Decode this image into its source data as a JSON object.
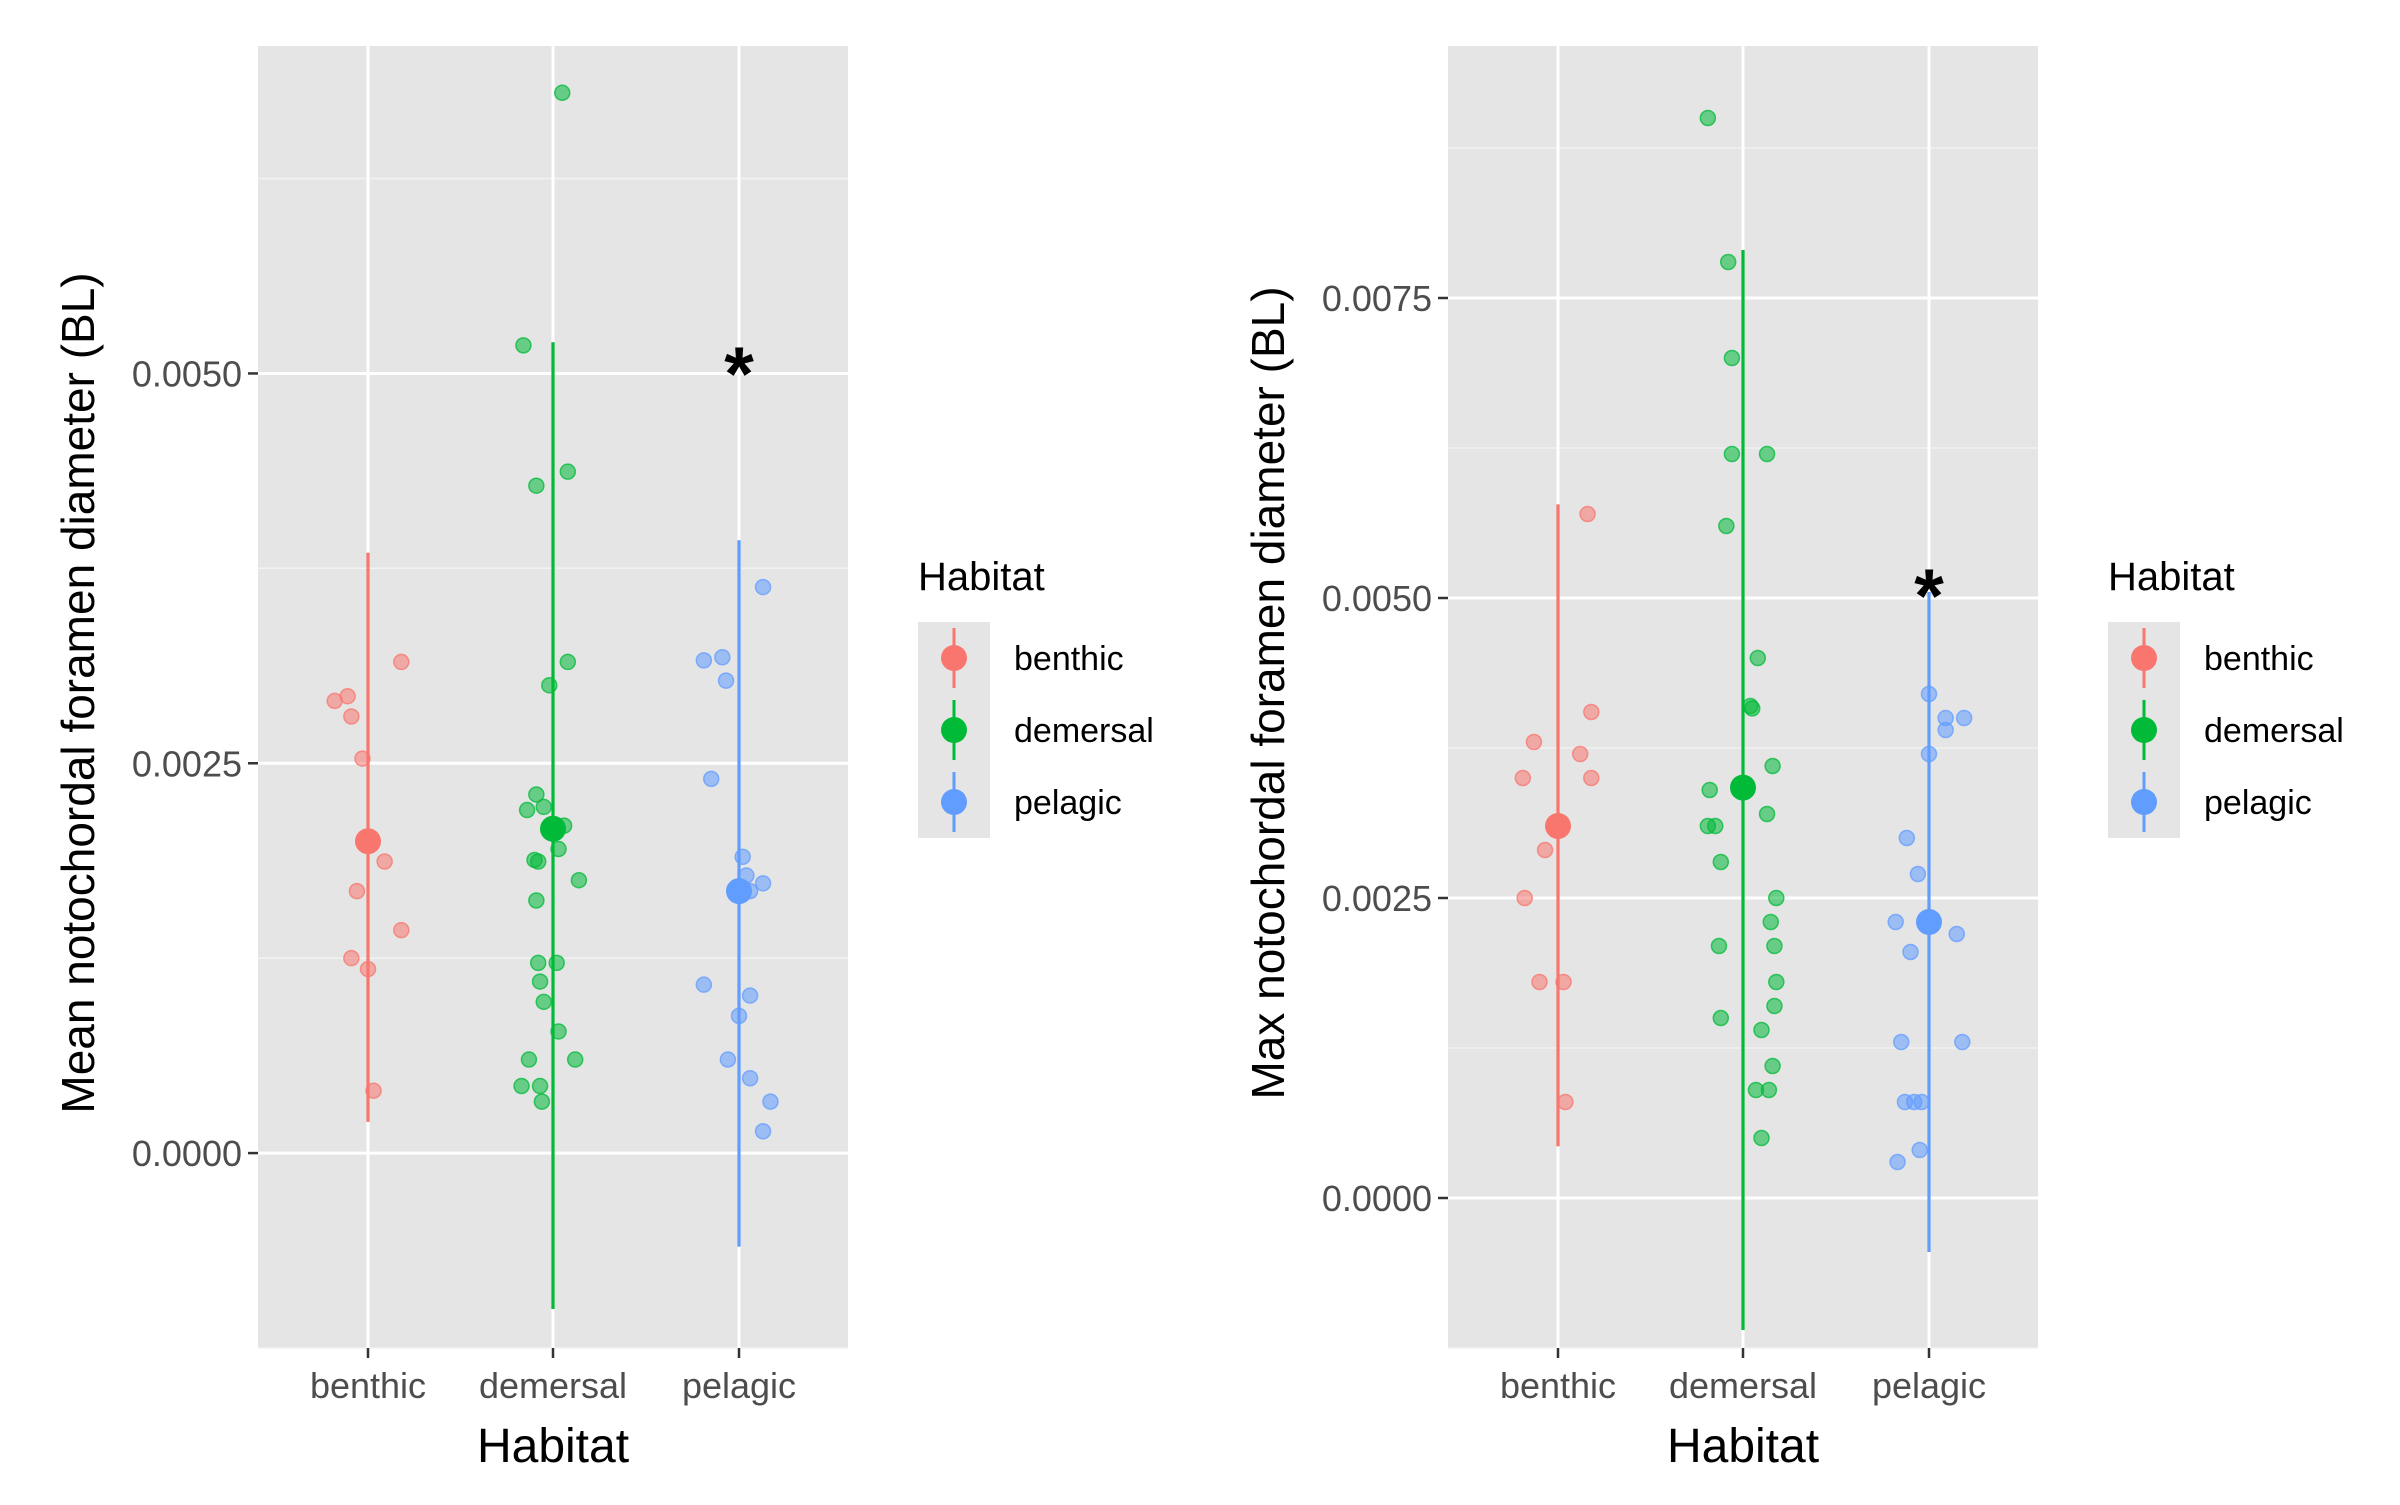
{
  "colors": {
    "panel_bg": "#E5E5E5",
    "grid_major": "#FFFFFF",
    "grid_minor": "#F2F2F2",
    "benthic": "#F8766D",
    "demersal": "#00BA38",
    "pelagic": "#619CFF",
    "text_dark": "#000000",
    "tick_text": "#4D4D4D"
  },
  "chart_data": [
    {
      "type": "scatter",
      "title": "",
      "xlabel": "Habitat",
      "ylabel": "Mean notochordal foramen diameter (BL)",
      "categories": [
        "benthic",
        "demersal",
        "pelagic"
      ],
      "ylim": [
        -0.00125,
        0.0071
      ],
      "yticks": [
        "0.0000",
        "0.0025",
        "0.0050"
      ],
      "ytick_values": [
        0.0,
        0.0025,
        0.005
      ],
      "grid": true,
      "legend": {
        "title": "Habitat",
        "position": "right",
        "entries": [
          "benthic",
          "demersal",
          "pelagic"
        ]
      },
      "annotations": [
        {
          "text": "*",
          "category": "pelagic",
          "y": 0.0051
        }
      ],
      "series": [
        {
          "name": "benthic",
          "mean": 0.002,
          "interval": [
            0.0002,
            0.00385
          ],
          "points": [
            {
              "dx": -0.18,
              "y": 0.0029
            },
            {
              "dx": -0.11,
              "y": 0.00293
            },
            {
              "dx": -0.09,
              "y": 0.0028
            },
            {
              "dx": 0.18,
              "y": 0.00315
            },
            {
              "dx": -0.03,
              "y": 0.00253
            },
            {
              "dx": 0.09,
              "y": 0.00187
            },
            {
              "dx": -0.06,
              "y": 0.00168
            },
            {
              "dx": 0.18,
              "y": 0.00143
            },
            {
              "dx": -0.09,
              "y": 0.00125
            },
            {
              "dx": 0.0,
              "y": 0.00118
            },
            {
              "dx": 0.03,
              "y": 0.0004
            }
          ]
        },
        {
          "name": "demersal",
          "mean": 0.00208,
          "interval": [
            -0.001,
            0.0052
          ],
          "points": [
            {
              "dx": 0.05,
              "y": 0.0068
            },
            {
              "dx": -0.16,
              "y": 0.00518
            },
            {
              "dx": 0.08,
              "y": 0.00437
            },
            {
              "dx": -0.09,
              "y": 0.00428
            },
            {
              "dx": 0.08,
              "y": 0.00315
            },
            {
              "dx": -0.02,
              "y": 0.003
            },
            {
              "dx": -0.09,
              "y": 0.0023
            },
            {
              "dx": -0.14,
              "y": 0.0022
            },
            {
              "dx": -0.05,
              "y": 0.00222
            },
            {
              "dx": 0.06,
              "y": 0.0021
            },
            {
              "dx": 0.03,
              "y": 0.00195
            },
            {
              "dx": -0.1,
              "y": 0.00188
            },
            {
              "dx": -0.08,
              "y": 0.00187
            },
            {
              "dx": 0.14,
              "y": 0.00175
            },
            {
              "dx": -0.09,
              "y": 0.00162
            },
            {
              "dx": -0.08,
              "y": 0.00122
            },
            {
              "dx": 0.02,
              "y": 0.00122
            },
            {
              "dx": -0.07,
              "y": 0.0011
            },
            {
              "dx": -0.05,
              "y": 0.00097
            },
            {
              "dx": 0.03,
              "y": 0.00078
            },
            {
              "dx": -0.13,
              "y": 0.0006
            },
            {
              "dx": 0.12,
              "y": 0.0006
            },
            {
              "dx": -0.17,
              "y": 0.00043
            },
            {
              "dx": -0.07,
              "y": 0.00043
            },
            {
              "dx": -0.06,
              "y": 0.00033
            }
          ]
        },
        {
          "name": "pelagic",
          "mean": 0.00168,
          "interval": [
            -0.0006,
            0.00393
          ],
          "points": [
            {
              "dx": 0.13,
              "y": 0.00363
            },
            {
              "dx": -0.09,
              "y": 0.00318
            },
            {
              "dx": -0.19,
              "y": 0.00316
            },
            {
              "dx": -0.07,
              "y": 0.00303
            },
            {
              "dx": -0.15,
              "y": 0.0024
            },
            {
              "dx": 0.02,
              "y": 0.0019
            },
            {
              "dx": 0.04,
              "y": 0.00178
            },
            {
              "dx": 0.13,
              "y": 0.00173
            },
            {
              "dx": 0.06,
              "y": 0.00168
            },
            {
              "dx": 0.02,
              "y": 0.00167
            },
            {
              "dx": -0.19,
              "y": 0.00108
            },
            {
              "dx": 0.06,
              "y": 0.00101
            },
            {
              "dx": 0.0,
              "y": 0.00088
            },
            {
              "dx": -0.06,
              "y": 0.0006
            },
            {
              "dx": 0.06,
              "y": 0.00048
            },
            {
              "dx": 0.17,
              "y": 0.00033
            },
            {
              "dx": 0.13,
              "y": 0.00014
            }
          ]
        }
      ]
    },
    {
      "type": "scatter",
      "title": "",
      "xlabel": "Habitat",
      "ylabel": "Max notochordal foramen diameter (BL)",
      "categories": [
        "benthic",
        "demersal",
        "pelagic"
      ],
      "ylim": [
        -0.00125,
        0.0096
      ],
      "yticks": [
        "0.0000",
        "0.0025",
        "0.0050",
        "0.0075"
      ],
      "ytick_values": [
        0.0,
        0.0025,
        0.005,
        0.0075
      ],
      "grid": true,
      "legend": {
        "title": "Habitat",
        "position": "right",
        "entries": [
          "benthic",
          "demersal",
          "pelagic"
        ]
      },
      "annotations": [
        {
          "text": "*",
          "category": "pelagic",
          "y": 0.00515
        }
      ],
      "series": [
        {
          "name": "benthic",
          "mean": 0.0031,
          "interval": [
            0.00043,
            0.00578
          ],
          "points": [
            {
              "dx": 0.16,
              "y": 0.0057
            },
            {
              "dx": 0.18,
              "y": 0.00405
            },
            {
              "dx": -0.13,
              "y": 0.0038
            },
            {
              "dx": 0.12,
              "y": 0.0037
            },
            {
              "dx": -0.19,
              "y": 0.0035
            },
            {
              "dx": 0.18,
              "y": 0.0035
            },
            {
              "dx": -0.07,
              "y": 0.0029
            },
            {
              "dx": -0.18,
              "y": 0.0025
            },
            {
              "dx": -0.1,
              "y": 0.0018
            },
            {
              "dx": 0.03,
              "y": 0.0018
            },
            {
              "dx": 0.04,
              "y": 0.0008
            }
          ]
        },
        {
          "name": "demersal",
          "mean": 0.00342,
          "interval": [
            -0.0011,
            0.0079
          ],
          "points": [
            {
              "dx": -0.19,
              "y": 0.009
            },
            {
              "dx": -0.08,
              "y": 0.0078
            },
            {
              "dx": -0.06,
              "y": 0.007
            },
            {
              "dx": -0.06,
              "y": 0.0062
            },
            {
              "dx": 0.13,
              "y": 0.0062
            },
            {
              "dx": -0.09,
              "y": 0.0056
            },
            {
              "dx": 0.08,
              "y": 0.0045
            },
            {
              "dx": 0.04,
              "y": 0.0041
            },
            {
              "dx": 0.05,
              "y": 0.00408
            },
            {
              "dx": 0.16,
              "y": 0.0036
            },
            {
              "dx": -0.18,
              "y": 0.0034
            },
            {
              "dx": -0.19,
              "y": 0.0031
            },
            {
              "dx": -0.15,
              "y": 0.0031
            },
            {
              "dx": 0.13,
              "y": 0.0032
            },
            {
              "dx": -0.12,
              "y": 0.0028
            },
            {
              "dx": 0.18,
              "y": 0.0025
            },
            {
              "dx": 0.15,
              "y": 0.0023
            },
            {
              "dx": -0.13,
              "y": 0.0021
            },
            {
              "dx": 0.17,
              "y": 0.0021
            },
            {
              "dx": 0.18,
              "y": 0.0018
            },
            {
              "dx": 0.17,
              "y": 0.0016
            },
            {
              "dx": -0.12,
              "y": 0.0015
            },
            {
              "dx": 0.1,
              "y": 0.0014
            },
            {
              "dx": 0.16,
              "y": 0.0011
            },
            {
              "dx": 0.07,
              "y": 0.0009
            },
            {
              "dx": 0.14,
              "y": 0.0009
            },
            {
              "dx": 0.1,
              "y": 0.0005
            }
          ]
        },
        {
          "name": "pelagic",
          "mean": 0.0023,
          "interval": [
            -0.00045,
            0.00505
          ],
          "points": [
            {
              "dx": 0.0,
              "y": 0.0042
            },
            {
              "dx": 0.09,
              "y": 0.004
            },
            {
              "dx": 0.19,
              "y": 0.004
            },
            {
              "dx": 0.09,
              "y": 0.0039
            },
            {
              "dx": 0.0,
              "y": 0.0037
            },
            {
              "dx": -0.12,
              "y": 0.003
            },
            {
              "dx": -0.06,
              "y": 0.0027
            },
            {
              "dx": -0.18,
              "y": 0.0023
            },
            {
              "dx": 0.15,
              "y": 0.0022
            },
            {
              "dx": -0.1,
              "y": 0.00205
            },
            {
              "dx": -0.15,
              "y": 0.0013
            },
            {
              "dx": 0.18,
              "y": 0.0013
            },
            {
              "dx": -0.13,
              "y": 0.0008
            },
            {
              "dx": -0.08,
              "y": 0.0008
            },
            {
              "dx": -0.04,
              "y": 0.0008
            },
            {
              "dx": -0.05,
              "y": 0.0004
            },
            {
              "dx": -0.17,
              "y": 0.0003
            }
          ]
        }
      ]
    }
  ]
}
